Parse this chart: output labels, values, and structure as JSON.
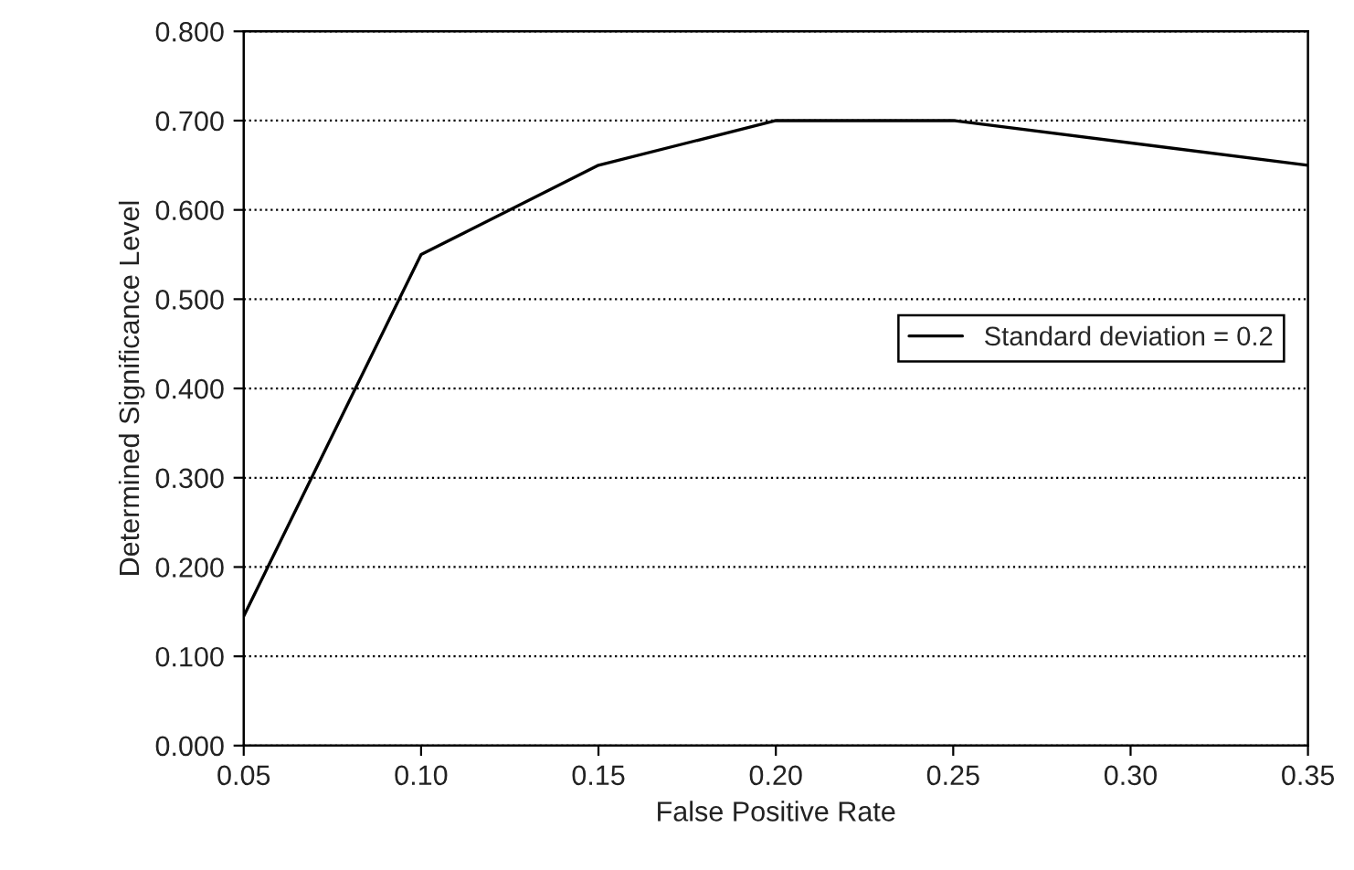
{
  "chart_data": {
    "type": "line",
    "xlabel": "False Positive Rate",
    "ylabel": "Determined Significance Level",
    "x": [
      0.05,
      0.1,
      0.15,
      0.2,
      0.25,
      0.35
    ],
    "series": [
      {
        "name": "Standard deviation = 0.2",
        "color": "#000000",
        "values": [
          0.145,
          0.55,
          0.65,
          0.7,
          0.7,
          0.65
        ]
      }
    ],
    "xlim": [
      0.05,
      0.35
    ],
    "xticks": [
      {
        "value": 0.05,
        "label": "0.05"
      },
      {
        "value": 0.1,
        "label": "0.10"
      },
      {
        "value": 0.15,
        "label": "0.15"
      },
      {
        "value": 0.2,
        "label": "0.20"
      },
      {
        "value": 0.25,
        "label": "0.25"
      },
      {
        "value": 0.3,
        "label": "0.30"
      },
      {
        "value": 0.35,
        "label": "0.35"
      }
    ],
    "ylim": [
      0,
      0.8
    ],
    "yticks": [
      {
        "value": 0,
        "label": "0.000"
      },
      {
        "value": 0.1,
        "label": "0.100"
      },
      {
        "value": 0.2,
        "label": "0.200"
      },
      {
        "value": 0.3,
        "label": "0.300"
      },
      {
        "value": 0.4,
        "label": "0.400"
      },
      {
        "value": 0.5,
        "label": "0.500"
      },
      {
        "value": 0.6,
        "label": "0.600"
      },
      {
        "value": 0.7,
        "label": "0.700"
      },
      {
        "value": 0.8,
        "label": "0.800"
      }
    ],
    "grid": "y",
    "legend": "right",
    "marker": "none",
    "line_style": "solid"
  }
}
